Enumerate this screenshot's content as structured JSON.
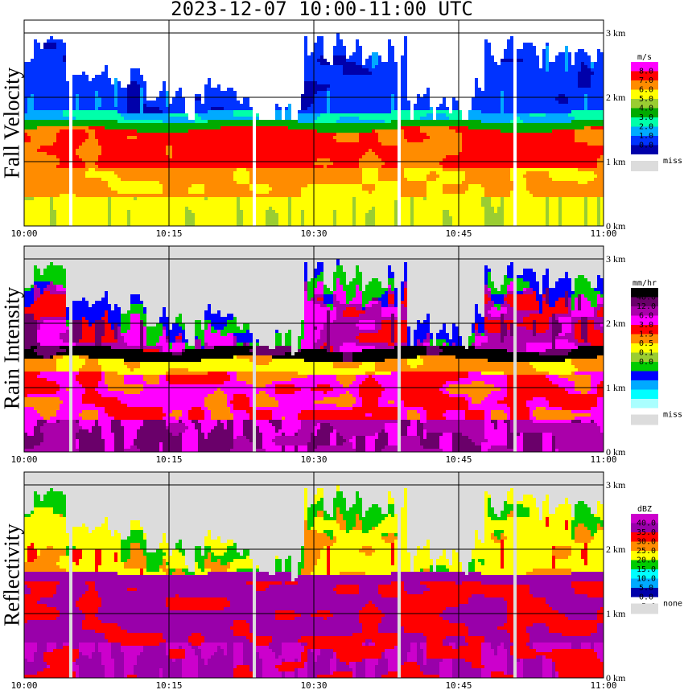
{
  "header": {
    "title": "2023-12-07   10:00-11:00 UTC"
  },
  "time_ticks": [
    "10:00",
    "10:15",
    "10:30",
    "10:45",
    "11:00"
  ],
  "altitude_ticks": [
    "0 km",
    "1 km",
    "2 km",
    "3 km"
  ],
  "missing_color": "#dcdcdc",
  "panels": [
    {
      "title": "Fall Velocity",
      "legend": {
        "unit": "m/s",
        "colors": [
          "#ff00ff",
          "#ff0000",
          "#ff8c00",
          "#ffff00",
          "#9acd32",
          "#00aa00",
          "#00ffaa",
          "#00aaff",
          "#0033ff",
          "#0000aa"
        ],
        "labels": [
          "8.0",
          "7.0",
          "6.0",
          "5.0",
          "4.0",
          "3.0",
          "2.0",
          "1.0",
          "0.0"
        ],
        "missing_label": "miss"
      }
    },
    {
      "title": "Rain Intensity",
      "legend": {
        "unit": "mm/hr",
        "colors": [
          "#000000",
          "#6a006a",
          "#aa00aa",
          "#ff00ff",
          "#ff0000",
          "#ff8c00",
          "#ffff00",
          "#9acd32",
          "#00cc00",
          "#0000ff",
          "#00aaff",
          "#00ffff",
          "#aaffff"
        ],
        "labels": [
          "48.0",
          "12.0",
          "6.0",
          "3.0",
          "1.5",
          "0.5",
          "0.1",
          "0.0"
        ],
        "missing_label": "miss"
      }
    },
    {
      "title": "Reflectivity",
      "legend": {
        "unit": "dBZ",
        "colors": [
          "#cc00cc",
          "#9900aa",
          "#ff0000",
          "#ff8c00",
          "#ffff00",
          "#00cc00",
          "#00ffff",
          "#00aaff",
          "#0000aa"
        ],
        "labels": [
          "40.0",
          "35.0",
          "30.0",
          "25.0",
          "20.0",
          "15.0",
          "10.0",
          "5.0",
          "0.0",
          "-5.0"
        ],
        "missing_label": "none"
      }
    }
  ],
  "chart_data": {
    "type": "heatmap",
    "title": "2023-12-07   10:00-11:00 UTC",
    "x_range": [
      "10:00",
      "11:00"
    ],
    "y_range_km": [
      0,
      3.2
    ],
    "grid": true,
    "melting_layer_km": 1.55,
    "panels": [
      "Fall Velocity",
      "Rain Intensity",
      "Reflectivity"
    ]
  }
}
